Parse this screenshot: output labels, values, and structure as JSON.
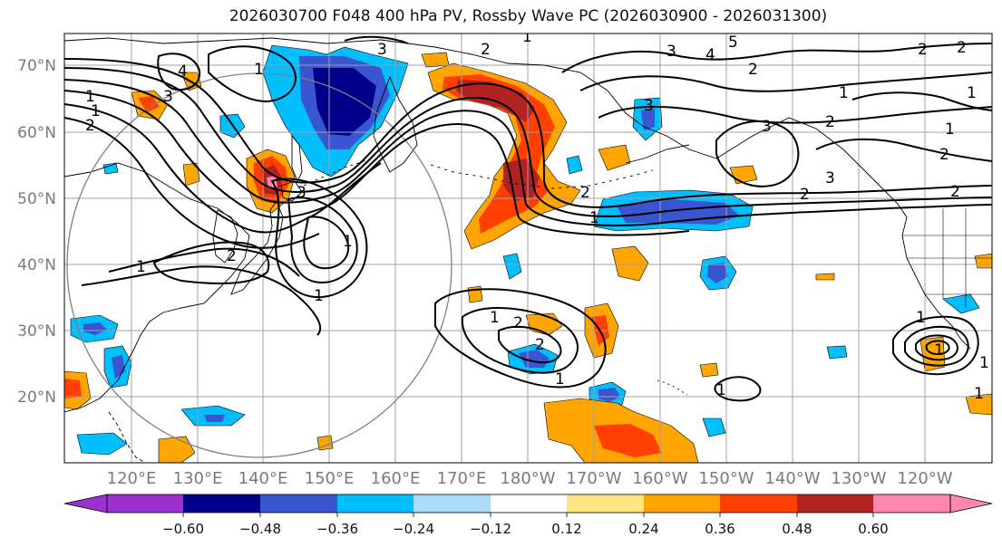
{
  "title": "2026030700 F048 400 hPa PV, Rossby Wave PC (2026030900 - 2026031300)",
  "lat_labels": [
    "70°N",
    "60°N",
    "50°N",
    "40°N",
    "30°N",
    "20°N"
  ],
  "lon_labels": [
    "120°E",
    "130°E",
    "140°E",
    "150°E",
    "160°E",
    "170°E",
    "180°W",
    "170°W",
    "160°W",
    "150°W",
    "140°W",
    "130°W",
    "120°W"
  ],
  "colorbar": {
    "ticks": [
      "−0.60",
      "−0.48",
      "−0.36",
      "−0.24",
      "−0.12",
      "0.12",
      "0.24",
      "0.36",
      "0.48",
      "0.60"
    ],
    "colors": [
      "#9b30d0",
      "#00008b",
      "#3a55d0",
      "#00bfff",
      "#aadcf8",
      "#ffffff",
      "#ffe680",
      "#ffa500",
      "#ff4000",
      "#b22222",
      "#ff88b0"
    ]
  },
  "colors": {
    "grid": "#a0a0a0",
    "coast": "#000000",
    "circle": "#808080"
  },
  "contour_labels": [
    "1",
    "1",
    "2",
    "1",
    "1",
    "2",
    "3",
    "4",
    "3",
    "2",
    "1",
    "1",
    "1",
    "2",
    "2",
    "1",
    "1",
    "1",
    "1",
    "2",
    "2",
    "3",
    "3",
    "4",
    "5",
    "3",
    "2",
    "2",
    "1",
    "2",
    "3",
    "3",
    "2",
    "2",
    "1",
    "2",
    "1",
    "1",
    "1",
    "1",
    "1"
  ]
}
